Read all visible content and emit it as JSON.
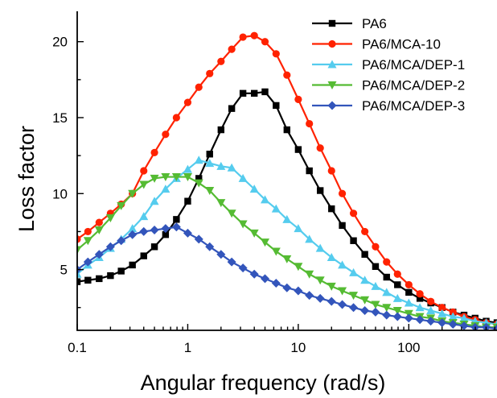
{
  "chart_data": {
    "type": "line",
    "xlabel": "Angular frequency (rad/s)",
    "ylabel": "Loss factor",
    "xscale": "log",
    "xlim": [
      0.1,
      628
    ],
    "ylim": [
      1,
      22
    ],
    "xticks": [
      0.1,
      1,
      10,
      100
    ],
    "xtick_labels": [
      "0.1",
      "1",
      "10",
      "100"
    ],
    "yticks": [
      5,
      10,
      15,
      20
    ],
    "ytick_labels": [
      "5",
      "10",
      "15",
      "20"
    ],
    "grid": false,
    "legend": "top-right",
    "series": [
      {
        "name": "PA6",
        "color": "#000000",
        "marker": "square",
        "points": [
          [
            0.1,
            4.2
          ],
          [
            0.125,
            4.3
          ],
          [
            0.158,
            4.4
          ],
          [
            0.2,
            4.6
          ],
          [
            0.25,
            4.9
          ],
          [
            0.316,
            5.3
          ],
          [
            0.4,
            5.9
          ],
          [
            0.5,
            6.5
          ],
          [
            0.63,
            7.3
          ],
          [
            0.79,
            8.3
          ],
          [
            1.0,
            9.5
          ],
          [
            1.26,
            11.0
          ],
          [
            1.58,
            12.6
          ],
          [
            2.0,
            14.2
          ],
          [
            2.5,
            15.6
          ],
          [
            3.16,
            16.6
          ],
          [
            4.0,
            16.6
          ],
          [
            5.0,
            16.7
          ],
          [
            6.3,
            15.8
          ],
          [
            7.9,
            14.2
          ],
          [
            10,
            12.9
          ],
          [
            12.6,
            11.5
          ],
          [
            15.8,
            10.2
          ],
          [
            20,
            9.0
          ],
          [
            25,
            7.9
          ],
          [
            31.6,
            6.9
          ],
          [
            40,
            6.0
          ],
          [
            50,
            5.2
          ],
          [
            63,
            4.5
          ],
          [
            79,
            4.0
          ],
          [
            100,
            3.5
          ],
          [
            126,
            3.1
          ],
          [
            158,
            2.8
          ],
          [
            200,
            2.5
          ],
          [
            251,
            2.2
          ],
          [
            316,
            2.0
          ],
          [
            398,
            1.8
          ],
          [
            501,
            1.6
          ],
          [
            628,
            1.5
          ]
        ]
      },
      {
        "name": "PA6/MCA-10",
        "color": "#ff2200",
        "marker": "circle",
        "points": [
          [
            0.1,
            7.0
          ],
          [
            0.125,
            7.5
          ],
          [
            0.158,
            8.1
          ],
          [
            0.2,
            8.7
          ],
          [
            0.25,
            9.3
          ],
          [
            0.316,
            10.0
          ],
          [
            0.4,
            11.5
          ],
          [
            0.5,
            12.7
          ],
          [
            0.63,
            13.9
          ],
          [
            0.79,
            15.0
          ],
          [
            1.0,
            16.0
          ],
          [
            1.26,
            17.0
          ],
          [
            1.58,
            17.9
          ],
          [
            2.0,
            18.7
          ],
          [
            2.5,
            19.5
          ],
          [
            3.16,
            20.3
          ],
          [
            4.0,
            20.4
          ],
          [
            5.0,
            20.0
          ],
          [
            6.3,
            19.2
          ],
          [
            7.9,
            17.8
          ],
          [
            10,
            16.2
          ],
          [
            12.6,
            14.6
          ],
          [
            15.8,
            13.0
          ],
          [
            20,
            11.5
          ],
          [
            25,
            10.0
          ],
          [
            31.6,
            8.7
          ],
          [
            40,
            7.5
          ],
          [
            50,
            6.5
          ],
          [
            63,
            5.5
          ],
          [
            79,
            4.7
          ],
          [
            100,
            4.0
          ],
          [
            126,
            3.4
          ],
          [
            158,
            2.9
          ],
          [
            200,
            2.5
          ],
          [
            251,
            2.2
          ],
          [
            316,
            1.9
          ],
          [
            398,
            1.7
          ],
          [
            501,
            1.5
          ],
          [
            628,
            1.4
          ]
        ]
      },
      {
        "name": "PA6/MCA/DEP-1",
        "color": "#55ccee",
        "marker": "triangle-up",
        "points": [
          [
            0.1,
            4.7
          ],
          [
            0.125,
            5.3
          ],
          [
            0.158,
            5.8
          ],
          [
            0.2,
            6.4
          ],
          [
            0.25,
            7.0
          ],
          [
            0.316,
            7.7
          ],
          [
            0.4,
            8.5
          ],
          [
            0.5,
            9.5
          ],
          [
            0.63,
            10.3
          ],
          [
            0.79,
            11.0
          ],
          [
            1.0,
            11.6
          ],
          [
            1.26,
            12.2
          ],
          [
            1.58,
            12.0
          ],
          [
            2.0,
            11.8
          ],
          [
            2.5,
            11.7
          ],
          [
            3.16,
            11.0
          ],
          [
            4.0,
            10.3
          ],
          [
            5.0,
            9.6
          ],
          [
            6.3,
            9.0
          ],
          [
            7.9,
            8.3
          ],
          [
            10,
            7.7
          ],
          [
            12.6,
            7.0
          ],
          [
            15.8,
            6.4
          ],
          [
            20,
            5.8
          ],
          [
            25,
            5.3
          ],
          [
            31.6,
            4.8
          ],
          [
            40,
            4.3
          ],
          [
            50,
            3.9
          ],
          [
            63,
            3.5
          ],
          [
            79,
            3.1
          ],
          [
            100,
            2.8
          ],
          [
            126,
            2.5
          ],
          [
            158,
            2.3
          ],
          [
            200,
            2.1
          ],
          [
            251,
            1.9
          ],
          [
            316,
            1.8
          ],
          [
            398,
            1.6
          ],
          [
            501,
            1.5
          ],
          [
            628,
            1.4
          ]
        ]
      },
      {
        "name": "PA6/MCA/DEP-2",
        "color": "#55bb33",
        "marker": "triangle-down",
        "points": [
          [
            0.1,
            6.3
          ],
          [
            0.125,
            6.9
          ],
          [
            0.158,
            7.6
          ],
          [
            0.2,
            8.4
          ],
          [
            0.25,
            9.2
          ],
          [
            0.316,
            10.0
          ],
          [
            0.4,
            10.6
          ],
          [
            0.5,
            11.0
          ],
          [
            0.63,
            11.1
          ],
          [
            0.79,
            11.1
          ],
          [
            1.0,
            11.1
          ],
          [
            1.26,
            10.7
          ],
          [
            1.58,
            10.2
          ],
          [
            2.0,
            9.4
          ],
          [
            2.5,
            8.7
          ],
          [
            3.16,
            8.0
          ],
          [
            4.0,
            7.4
          ],
          [
            5.0,
            6.8
          ],
          [
            6.3,
            6.2
          ],
          [
            7.9,
            5.7
          ],
          [
            10,
            5.2
          ],
          [
            12.6,
            4.7
          ],
          [
            15.8,
            4.3
          ],
          [
            20,
            3.9
          ],
          [
            25,
            3.6
          ],
          [
            31.6,
            3.3
          ],
          [
            40,
            3.0
          ],
          [
            50,
            2.7
          ],
          [
            63,
            2.5
          ],
          [
            79,
            2.3
          ],
          [
            100,
            2.1
          ],
          [
            126,
            1.9
          ],
          [
            158,
            1.8
          ],
          [
            200,
            1.6
          ],
          [
            251,
            1.5
          ],
          [
            316,
            1.4
          ],
          [
            398,
            1.3
          ],
          [
            501,
            1.2
          ],
          [
            628,
            1.2
          ]
        ]
      },
      {
        "name": "PA6/MCA/DEP-3",
        "color": "#3355bb",
        "marker": "diamond",
        "points": [
          [
            0.1,
            5.0
          ],
          [
            0.125,
            5.5
          ],
          [
            0.158,
            6.0
          ],
          [
            0.2,
            6.5
          ],
          [
            0.25,
            6.9
          ],
          [
            0.316,
            7.3
          ],
          [
            0.4,
            7.5
          ],
          [
            0.5,
            7.6
          ],
          [
            0.63,
            7.7
          ],
          [
            0.79,
            7.8
          ],
          [
            1.0,
            7.4
          ],
          [
            1.26,
            7.0
          ],
          [
            1.58,
            6.5
          ],
          [
            2.0,
            6.0
          ],
          [
            2.5,
            5.5
          ],
          [
            3.16,
            5.1
          ],
          [
            4.0,
            4.7
          ],
          [
            5.0,
            4.4
          ],
          [
            6.3,
            4.1
          ],
          [
            7.9,
            3.8
          ],
          [
            10,
            3.6
          ],
          [
            12.6,
            3.3
          ],
          [
            15.8,
            3.1
          ],
          [
            20,
            2.9
          ],
          [
            25,
            2.7
          ],
          [
            31.6,
            2.5
          ],
          [
            40,
            2.3
          ],
          [
            50,
            2.2
          ],
          [
            63,
            2.0
          ],
          [
            79,
            1.9
          ],
          [
            100,
            1.8
          ],
          [
            126,
            1.7
          ],
          [
            158,
            1.6
          ],
          [
            200,
            1.5
          ],
          [
            251,
            1.4
          ],
          [
            316,
            1.3
          ],
          [
            398,
            1.2
          ],
          [
            501,
            1.2
          ],
          [
            628,
            1.1
          ]
        ]
      }
    ]
  }
}
